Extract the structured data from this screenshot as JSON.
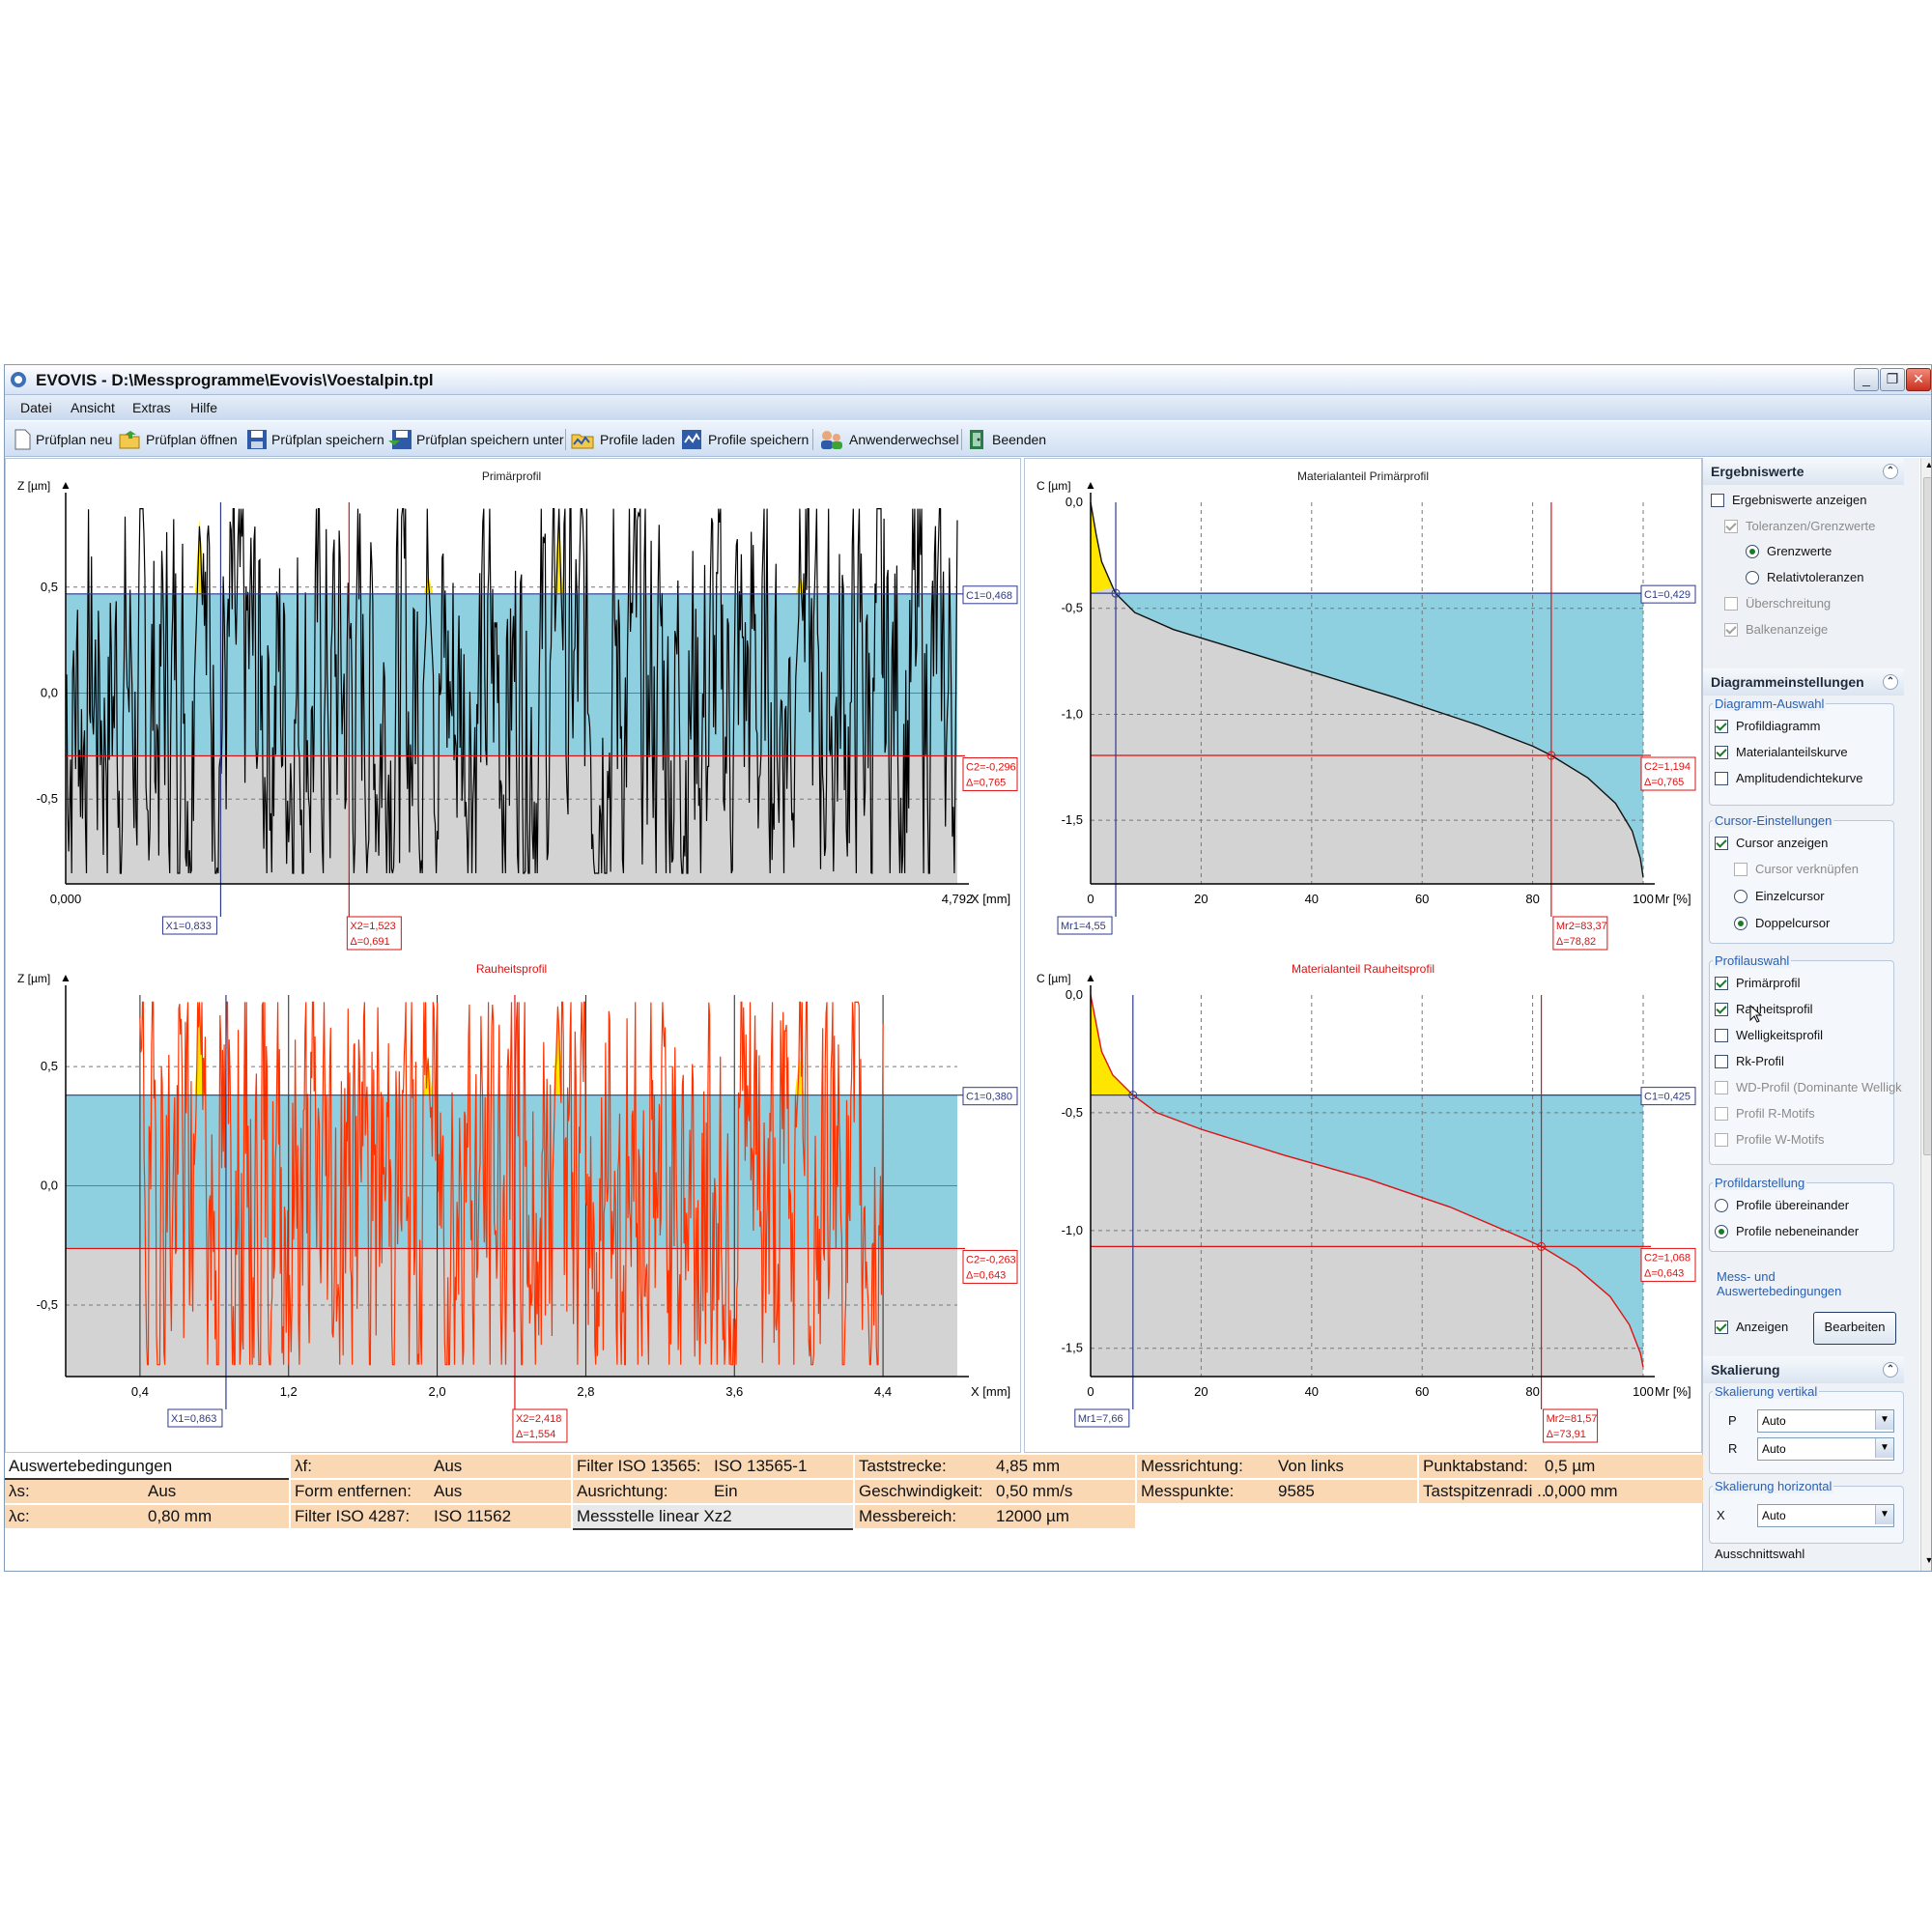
{
  "window": {
    "title": "EVOVIS - D:\\Messprogramme\\Evovis\\Voestalpin.tpl"
  },
  "menu": [
    "Datei",
    "Ansicht",
    "Extras",
    "Hilfe"
  ],
  "toolbar": {
    "new_plan": "Prüfplan neu",
    "open_plan": "Prüfplan öffnen",
    "save_plan": "Prüfplan speichern",
    "save_plan_as": "Prüfplan speichern unter",
    "load_profiles": "Profile laden",
    "save_profiles": "Profile speichern",
    "switch_user": "Anwenderwechsel",
    "exit": "Beenden"
  },
  "chart_data": [
    {
      "type": "line",
      "title": "Primärprofil",
      "xlabel": "X [mm]",
      "ylabel": "Z [µm]",
      "x_ticks": [
        "0,000",
        "4,792"
      ],
      "y_ticks": [
        "0,5",
        "0,0",
        "-0,5"
      ],
      "ylim": [
        -0.9,
        0.9
      ],
      "xlim": [
        0,
        4.792
      ],
      "line_color": "#000000",
      "fill_above": "#8ecfe0",
      "fill_below": "#d3d3d3",
      "cursors": {
        "C1": "C1=0,468",
        "C2": "C2=-0,296",
        "dC": "Δ=0,765",
        "X1": "X1=0,833",
        "X2": "X2=1,523",
        "dX": "Δ=0,691"
      },
      "c1": 0.468,
      "c2": -0.296,
      "x1": 0.833,
      "x2": 1.523
    },
    {
      "type": "line",
      "title": "Rauheitsprofil",
      "xlabel": "X [mm]",
      "ylabel": "Z [µm]",
      "x_ticks": [
        "0,4",
        "1,2",
        "2,0",
        "2,8",
        "3,6",
        "4,4"
      ],
      "y_ticks": [
        "0,5",
        "0,0",
        "-0,5"
      ],
      "ylim": [
        -0.8,
        0.8
      ],
      "xlim": [
        0,
        4.8
      ],
      "line_color": "#ff3300",
      "fill_above": "#8ecfe0",
      "fill_below": "#d3d3d3",
      "cursors": {
        "C1": "C1=0,380",
        "C2": "C2=-0,263",
        "dC": "Δ=0,643",
        "X1": "X1=0,863",
        "X2": "X2=2,418",
        "dX": "Δ=1,554"
      },
      "c1": 0.38,
      "c2": -0.263,
      "x1": 0.863,
      "x2": 2.418
    },
    {
      "type": "area",
      "title": "Materialanteil Primärprofil",
      "xlabel": "Mr [%]",
      "ylabel": "C [µm]",
      "x_ticks": [
        "0",
        "20",
        "40",
        "60",
        "80",
        "100"
      ],
      "y_ticks": [
        "0,0",
        "-0,5",
        "-1,0",
        "-1,5"
      ],
      "xlim": [
        0,
        100
      ],
      "ylim": [
        -1.8,
        0
      ],
      "curve_mr": [
        0,
        1,
        2,
        4,
        4.55,
        8,
        15,
        25,
        40,
        55,
        70,
        80,
        83.37,
        90,
        95,
        98,
        99.5,
        100
      ],
      "curve_c": [
        0,
        -0.15,
        -0.28,
        -0.4,
        -0.43,
        -0.52,
        -0.6,
        -0.68,
        -0.8,
        -0.92,
        -1.05,
        -1.15,
        -1.194,
        -1.3,
        -1.42,
        -1.55,
        -1.68,
        -1.77
      ],
      "cursors": {
        "C1": "C1=0,429",
        "C2": "C2=1,194",
        "dC": "Δ=0,765",
        "Mr1": "Mr1=4,55",
        "Mr2": "Mr2=83,37",
        "dMr": "Δ=78,82"
      },
      "c1": -0.429,
      "c2": -1.194,
      "mr1": 4.55,
      "mr2": 83.37
    },
    {
      "type": "area",
      "title": "Materialanteil Rauheitsprofil",
      "xlabel": "Mr [%]",
      "ylabel": "C [µm]",
      "x_ticks": [
        "0",
        "20",
        "40",
        "60",
        "80",
        "100"
      ],
      "y_ticks": [
        "0,0",
        "-0,5",
        "-1,0",
        "-1,5"
      ],
      "xlim": [
        0,
        100
      ],
      "ylim": [
        -1.62,
        0
      ],
      "curve_mr": [
        0,
        1,
        2,
        4,
        7.66,
        12,
        20,
        35,
        50,
        65,
        78,
        81.57,
        88,
        94,
        97.5,
        99.5,
        100
      ],
      "curve_c": [
        0,
        -0.12,
        -0.24,
        -0.34,
        -0.425,
        -0.5,
        -0.57,
        -0.68,
        -0.78,
        -0.9,
        -1.03,
        -1.068,
        -1.16,
        -1.28,
        -1.4,
        -1.52,
        -1.58
      ],
      "cursors": {
        "C1": "C1=0,425",
        "C2": "C2=1,068",
        "dC": "Δ=0,643",
        "Mr1": "Mr1=7,66",
        "Mr2": "Mr2=81,57",
        "dMr": "Δ=73,91"
      },
      "c1": -0.425,
      "c2": -1.068,
      "mr1": 7.66,
      "mr2": 81.57
    }
  ],
  "sidebar": {
    "results": {
      "title": "Ergebniswerte",
      "show": "Ergebniswerte anzeigen",
      "tolerances": "Toleranzen/Grenzwerte",
      "limits": "Grenzwerte",
      "relative": "Relativtoleranzen",
      "exceed": "Überschreitung",
      "bars": "Balkenanzeige"
    },
    "diagram": {
      "title": "Diagrammeinstellungen",
      "selection": "Diagramm-Auswahl",
      "profile_diagram": "Profildiagramm",
      "material_curve": "Materialanteilskurve",
      "amplitude_curve": "Amplitudendichtekurve",
      "cursor_settings": "Cursor-Einstellungen",
      "show_cursor": "Cursor anzeigen",
      "link_cursor": "Cursor verknüpfen",
      "single_cursor": "Einzelcursor",
      "double_cursor": "Doppelcursor",
      "profile_selection": "Profilauswahl",
      "primary": "Primärprofil",
      "roughness": "Rauheitsprofil",
      "waviness": "Welligkeitsprofil",
      "rk": "Rk-Profil",
      "wd": "WD-Profil (Dominante Welligk",
      "r_motifs": "Profil R-Motifs",
      "w_motifs": "Profile W-Motifs",
      "display": "Profildarstellung",
      "stacked": "Profile übereinander",
      "side_by_side": "Profile nebeneinander",
      "conditions": "Mess- und Auswertebedingungen",
      "show": "Anzeigen",
      "edit": "Bearbeiten"
    },
    "scaling": {
      "title": "Skalierung",
      "vertical": "Skalierung vertikal",
      "p_label": "P",
      "p_value": "Auto",
      "r_label": "R",
      "r_value": "Auto",
      "horizontal": "Skalierung horizontal",
      "x_label": "X",
      "x_value": "Auto",
      "cutout": "Ausschnittswahl"
    }
  },
  "conditions": {
    "header": "Auswertebedingungen",
    "ls_label": "λs:",
    "ls_value": "Aus",
    "lc_label": "λc:",
    "lc_value": "0,80 mm",
    "lf_label": "λf:",
    "lf_value": "Aus",
    "form_label": "Form entfernen:",
    "form_value": "Aus",
    "f4287_label": "Filter ISO 4287:",
    "f4287_value": "ISO 11562",
    "f13565_label": "Filter ISO 13565:",
    "f13565_value": "ISO 13565-1",
    "align_label": "Ausrichtung:",
    "align_value": "Ein",
    "mess_stelle": "Messstelle linear Xz2",
    "tast_label": "Taststrecke:",
    "tast_value": "4,85 mm",
    "speed_label": "Geschwindigkeit:",
    "speed_value": "0,50 mm/s",
    "range_label": "Messbereich:",
    "range_value": "12000 µm",
    "dir_label": "Messrichtung:",
    "dir_value": "Von links",
    "pts_label": "Messpunkte:",
    "pts_value": "9585",
    "spacing_label": "Punktabstand:",
    "spacing_value": "0,5 µm",
    "tip_label": "Tastspitzenradi ...",
    "tip_value": "0,000 mm"
  }
}
